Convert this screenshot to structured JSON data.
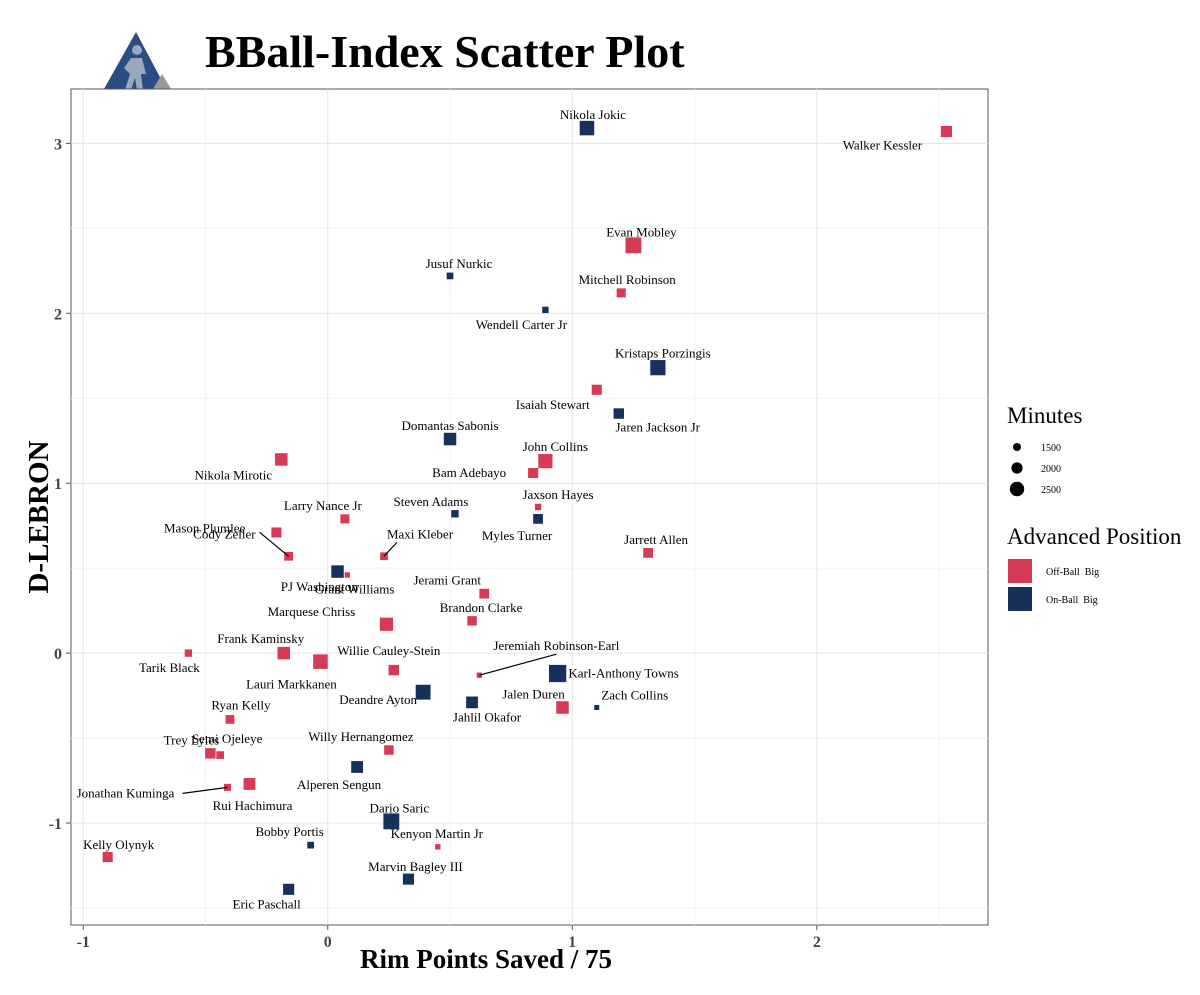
{
  "chart_data": {
    "type": "scatter",
    "title": "BBall-Index Scatter Plot",
    "xlabel": "Rim Points Saved / 75",
    "ylabel": "D-LEBRON",
    "xlim": [
      -1.05,
      2.7
    ],
    "ylim": [
      -1.6,
      3.32
    ],
    "xticks": [
      -1,
      0,
      1,
      2
    ],
    "yticks": [
      -1,
      0,
      1,
      2,
      3
    ],
    "grid": true,
    "legend_placement": "right",
    "size_legend": {
      "title": "Minutes",
      "entries": [
        1500,
        2000,
        2500
      ]
    },
    "color_legend": {
      "title": "Advanced Position",
      "entries": [
        {
          "name": "Off-Ball  Big",
          "color": "#d63a55"
        },
        {
          "name": "On-Ball  Big",
          "color": "#17305c"
        }
      ]
    },
    "colors": {
      "off": "#d63a55",
      "on": "#17305c"
    },
    "points": [
      {
        "name": "Nikola Jokic",
        "x": 1.06,
        "y": 3.09,
        "pos": "on",
        "minutes": 2300
      },
      {
        "name": "Walker Kessler",
        "x": 2.53,
        "y": 3.07,
        "pos": "off",
        "minutes": 1800
      },
      {
        "name": "Evan Mobley",
        "x": 1.25,
        "y": 2.4,
        "pos": "off",
        "minutes": 2500
      },
      {
        "name": "Jusuf Nurkic",
        "x": 0.5,
        "y": 2.22,
        "pos": "on",
        "minutes": 1150
      },
      {
        "name": "Mitchell Robinson",
        "x": 1.2,
        "y": 2.12,
        "pos": "off",
        "minutes": 1500
      },
      {
        "name": "Wendell Carter Jr",
        "x": 0.89,
        "y": 2.02,
        "pos": "on",
        "minutes": 1100
      },
      {
        "name": "Kristaps Porzingis",
        "x": 1.35,
        "y": 1.68,
        "pos": "on",
        "minutes": 2400
      },
      {
        "name": "Isaiah Stewart",
        "x": 1.1,
        "y": 1.55,
        "pos": "off",
        "minutes": 1650
      },
      {
        "name": "Jaren Jackson Jr",
        "x": 1.19,
        "y": 1.41,
        "pos": "on",
        "minutes": 1700
      },
      {
        "name": "Domantas Sabonis",
        "x": 0.5,
        "y": 1.26,
        "pos": "on",
        "minutes": 2000
      },
      {
        "name": "John Collins",
        "x": 0.89,
        "y": 1.13,
        "pos": "off",
        "minutes": 2250
      },
      {
        "name": "Nikola Mirotic",
        "x": -0.19,
        "y": 1.14,
        "pos": "off",
        "minutes": 2000
      },
      {
        "name": "Bam Adebayo",
        "x": 0.84,
        "y": 1.06,
        "pos": "off",
        "minutes": 1650
      },
      {
        "name": "Jaxson Hayes",
        "x": 0.86,
        "y": 0.86,
        "pos": "off",
        "minutes": 1100
      },
      {
        "name": "Steven Adams",
        "x": 0.52,
        "y": 0.82,
        "pos": "on",
        "minutes": 1250
      },
      {
        "name": "Myles Turner",
        "x": 0.86,
        "y": 0.79,
        "pos": "on",
        "minutes": 1600
      },
      {
        "name": "Larry Nance Jr",
        "x": 0.07,
        "y": 0.79,
        "pos": "off",
        "minutes": 1500
      },
      {
        "name": "Cody Zeller",
        "x": -0.21,
        "y": 0.71,
        "pos": "off",
        "minutes": 1650
      },
      {
        "name": "Mason Plumlee",
        "x": -0.16,
        "y": 0.57,
        "pos": "off",
        "minutes": 1450
      },
      {
        "name": "Jarrett Allen",
        "x": 1.31,
        "y": 0.59,
        "pos": "off",
        "minutes": 1600
      },
      {
        "name": "Maxi Kleber",
        "x": 0.23,
        "y": 0.57,
        "pos": "off",
        "minutes": 1300
      },
      {
        "name": "PJ Washington",
        "x": 0.08,
        "y": 0.46,
        "pos": "off",
        "minutes": 950
      },
      {
        "name": "Grant Williams",
        "x": 0.04,
        "y": 0.48,
        "pos": "on",
        "minutes": 2000
      },
      {
        "name": "Jerami Grant",
        "x": 0.64,
        "y": 0.35,
        "pos": "off",
        "minutes": 1600
      },
      {
        "name": "Brandon Clarke",
        "x": 0.59,
        "y": 0.19,
        "pos": "off",
        "minutes": 1550
      },
      {
        "name": "Marquese Chriss",
        "x": 0.24,
        "y": 0.17,
        "pos": "off",
        "minutes": 2100
      },
      {
        "name": "Frank Kaminsky",
        "x": -0.18,
        "y": 0.0,
        "pos": "off",
        "minutes": 2000
      },
      {
        "name": "Tarik Black",
        "x": -0.57,
        "y": 0.0,
        "pos": "off",
        "minutes": 1250
      },
      {
        "name": "Lauri Markkanen",
        "x": -0.03,
        "y": -0.05,
        "pos": "off",
        "minutes": 2300
      },
      {
        "name": "Willie Cauley-Stein",
        "x": 0.27,
        "y": -0.1,
        "pos": "off",
        "minutes": 1700
      },
      {
        "name": "Jeremiah Robinson-Earl",
        "x": 0.62,
        "y": -0.13,
        "pos": "off",
        "minutes": 950
      },
      {
        "name": "Karl-Anthony Towns",
        "x": 0.94,
        "y": -0.12,
        "pos": "on",
        "minutes": 2700
      },
      {
        "name": "Deandre Ayton",
        "x": 0.39,
        "y": -0.23,
        "pos": "on",
        "minutes": 2350
      },
      {
        "name": "Jahlil Okafor",
        "x": 0.59,
        "y": -0.29,
        "pos": "on",
        "minutes": 1900
      },
      {
        "name": "Jalen Duren",
        "x": 0.96,
        "y": -0.32,
        "pos": "off",
        "minutes": 2000
      },
      {
        "name": "Zach Collins",
        "x": 1.1,
        "y": -0.32,
        "pos": "on",
        "minutes": 900
      },
      {
        "name": "Ryan Kelly",
        "x": -0.4,
        "y": -0.39,
        "pos": "off",
        "minutes": 1450
      },
      {
        "name": "Willy Hernangomez",
        "x": 0.25,
        "y": -0.57,
        "pos": "off",
        "minutes": 1550
      },
      {
        "name": "Trey Lyles",
        "x": -0.48,
        "y": -0.59,
        "pos": "off",
        "minutes": 1700
      },
      {
        "name": "Semi Ojeleye",
        "x": -0.44,
        "y": -0.6,
        "pos": "off",
        "minutes": 1300
      },
      {
        "name": "Alperen Sengun",
        "x": 0.12,
        "y": -0.67,
        "pos": "on",
        "minutes": 1900
      },
      {
        "name": "Rui Hachimura",
        "x": -0.32,
        "y": -0.77,
        "pos": "off",
        "minutes": 1900
      },
      {
        "name": "Jonathan Kuminga",
        "x": -0.41,
        "y": -0.79,
        "pos": "off",
        "minutes": 1200
      },
      {
        "name": "Dario Saric",
        "x": 0.26,
        "y": -0.99,
        "pos": "on",
        "minutes": 2500
      },
      {
        "name": "Kenyon Martin Jr",
        "x": 0.45,
        "y": -1.14,
        "pos": "off",
        "minutes": 950
      },
      {
        "name": "Bobby Portis",
        "x": -0.07,
        "y": -1.13,
        "pos": "on",
        "minutes": 1150
      },
      {
        "name": "Kelly Olynyk",
        "x": -0.9,
        "y": -1.2,
        "pos": "off",
        "minutes": 1650
      },
      {
        "name": "Marvin Bagley III",
        "x": 0.33,
        "y": -1.33,
        "pos": "on",
        "minutes": 1800
      },
      {
        "name": "Eric Paschall",
        "x": -0.16,
        "y": -1.39,
        "pos": "on",
        "minutes": 1800
      }
    ]
  }
}
